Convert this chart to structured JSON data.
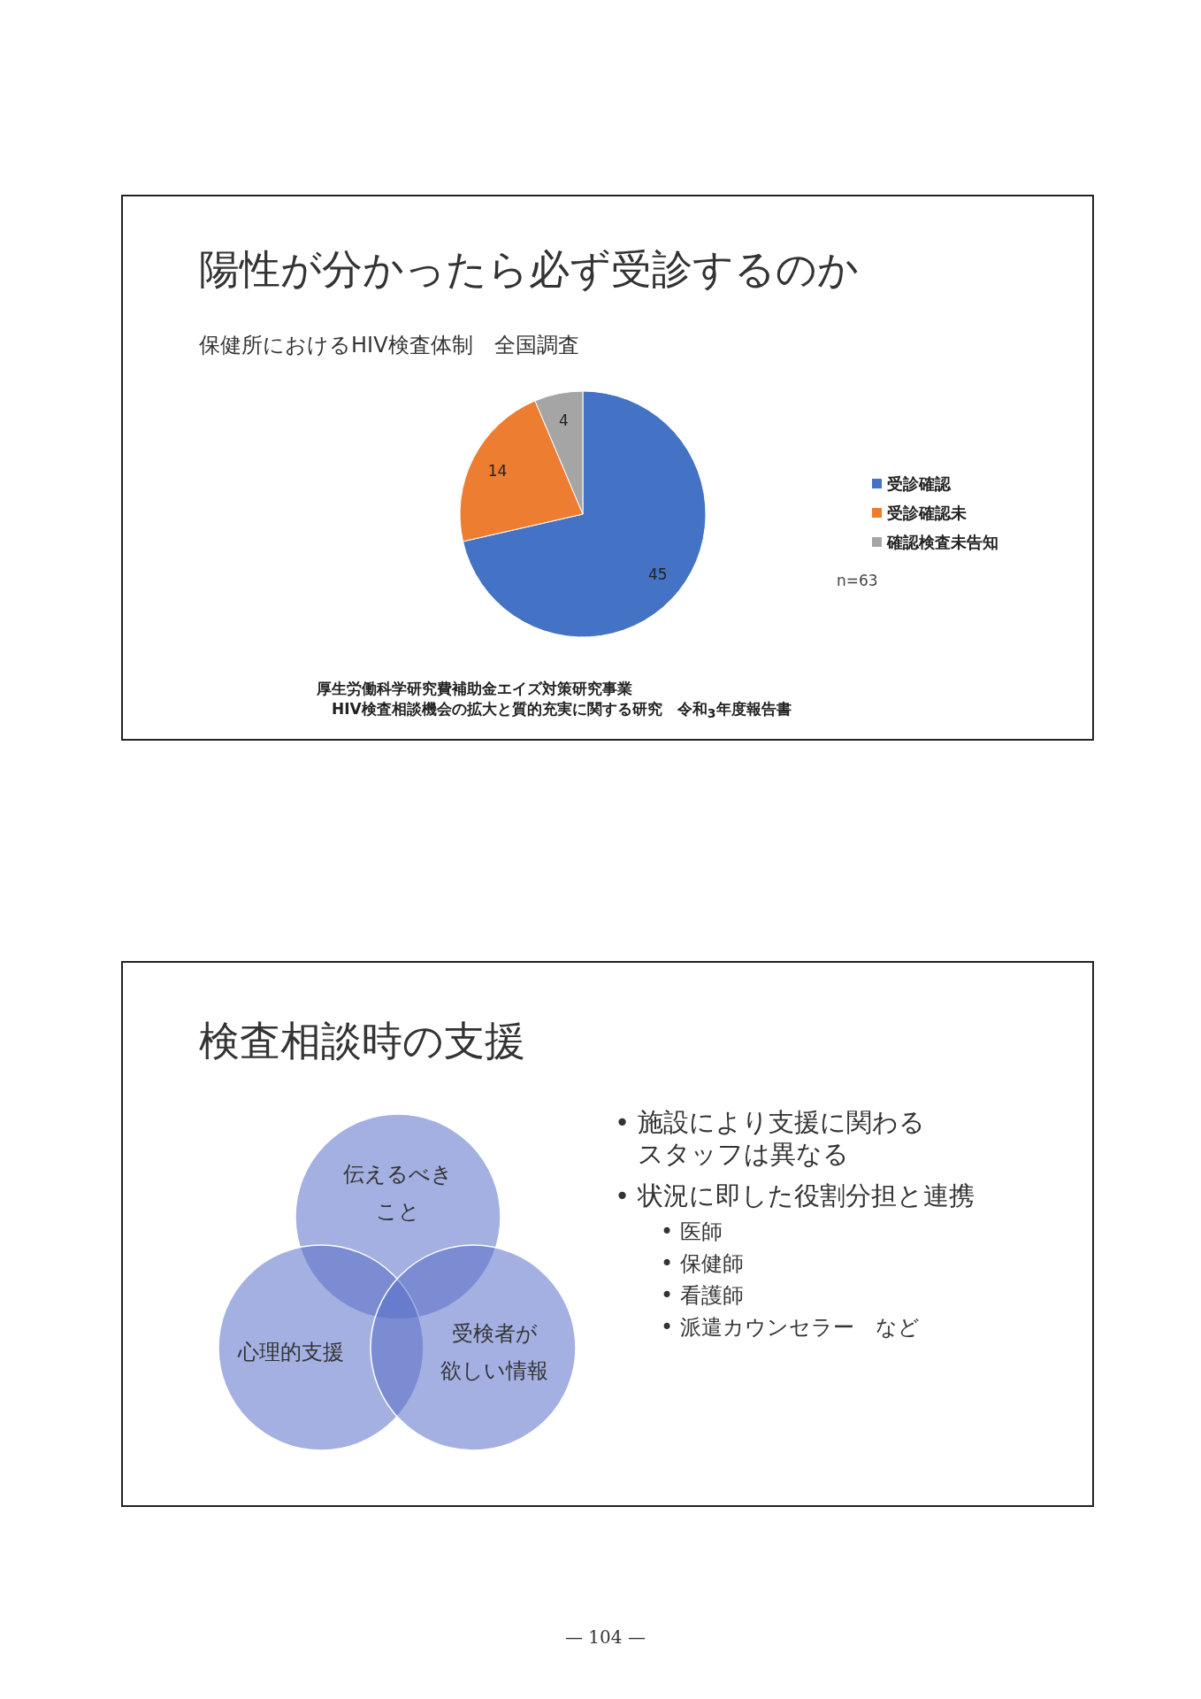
{
  "chart_data": [
    {
      "type": "pie",
      "title": "陽性が分かったら必ず受診するのか",
      "subtitle": "保健所におけるHIV検査体制　全国調査",
      "categories": [
        "受診確認",
        "受診確認未",
        "確認検査未告知"
      ],
      "values": [
        45,
        14,
        4
      ],
      "colors": [
        "#4472c4",
        "#ed7d31",
        "#a5a5a5"
      ],
      "data_labels": true,
      "legend": "right",
      "annotations": [
        "n=63",
        "厚生労働科学研究費補助金エイズ対策研究事業",
        "HIV検査相談機会の拡大と質的充実に関する研究　令和$_{3}$年度報告書"
      ]
    },
    {
      "type": "other",
      "title": "検査相談時の支援",
      "annotations": [
        "伝えるべきこと",
        "心理的支援",
        "受検者が",
        "欲しい情報",
        "• 施設により支援に関わるスタッフは異なる",
        "• 状況に即した役割分担と連携",
        "• 医師",
        "• 保健師",
        "• 看護師",
        "• 派遣カウンセラー　など",
        "— 104 —"
      ]
    }
  ]
}
